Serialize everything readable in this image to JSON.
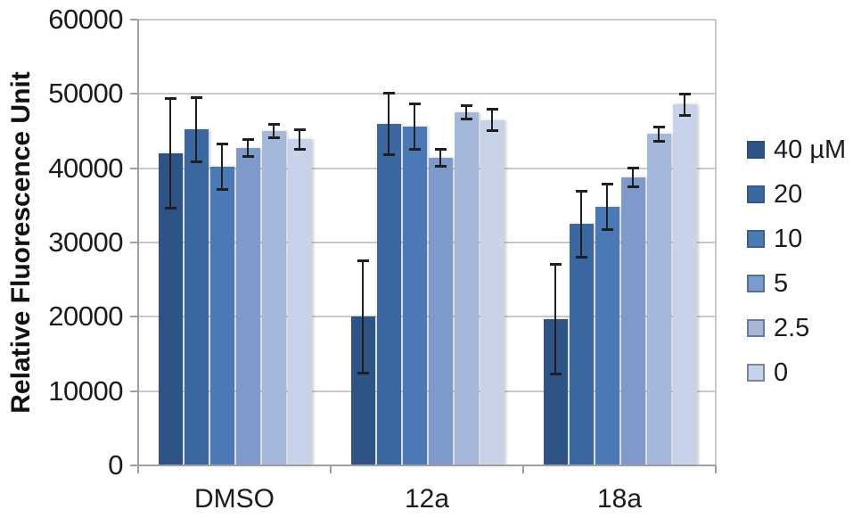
{
  "chart_data": {
    "type": "bar",
    "title": "",
    "ylabel": "Relative Fluorescence Unit",
    "xlabel": "",
    "ylim": [
      0,
      60000
    ],
    "yticks": [
      0,
      10000,
      20000,
      30000,
      40000,
      50000,
      60000
    ],
    "grid": true,
    "legend_position": "right",
    "categories": [
      "DMSO",
      "12a",
      "18a"
    ],
    "series": [
      {
        "name": "40 µM",
        "color": "#2E5385",
        "values": [
          42000,
          20000,
          19700
        ],
        "errors": [
          7400,
          7600,
          7400
        ]
      },
      {
        "name": "20",
        "color": "#3C68A2",
        "values": [
          45200,
          46000,
          32500
        ],
        "errors": [
          4400,
          4200,
          4500
        ]
      },
      {
        "name": "10",
        "color": "#4A79B6",
        "values": [
          40200,
          45600,
          34800
        ],
        "errors": [
          3100,
          3100,
          3100
        ]
      },
      {
        "name": "5",
        "color": "#7E9ACB",
        "values": [
          42700,
          41400,
          38800
        ],
        "errors": [
          1200,
          1200,
          1300
        ]
      },
      {
        "name": "2.5",
        "color": "#A6B7DC",
        "values": [
          45000,
          47500,
          44600
        ],
        "errors": [
          1000,
          950,
          1000
        ]
      },
      {
        "name": "0",
        "color": "#C8D2E9",
        "values": [
          43900,
          46500,
          48600
        ],
        "errors": [
          1400,
          1500,
          1500
        ]
      }
    ],
    "colors": {
      "axis": "#9f9f9f",
      "gridline": "#c9c9c9",
      "error_bar": "#1f1f1f",
      "text": "#1b1b1b"
    }
  }
}
